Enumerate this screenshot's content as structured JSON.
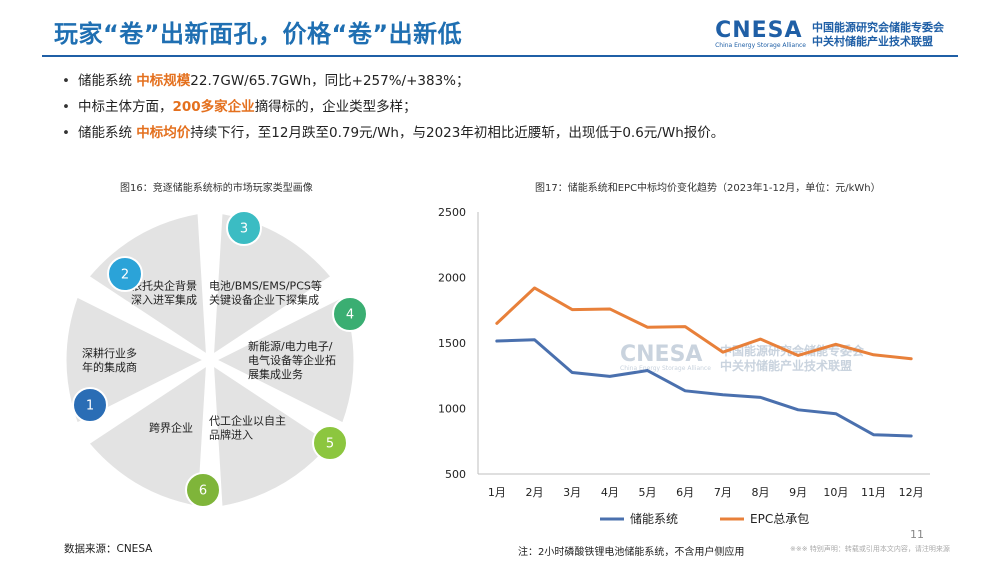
{
  "header": {
    "title": "玩家“卷”出新面孔，价格“卷”出新低",
    "brand_logo": "CNESA",
    "brand_sub": "China Energy Storage Alliance",
    "brand_line1": "中国能源研究会储能专委会",
    "brand_line2": "中关村储能产业技术联盟"
  },
  "bullets": [
    {
      "pre": "储能系统 ",
      "hl": "中标规模",
      "post": "22.7GW/65.7GWh，同比+257%/+383%；"
    },
    {
      "pre": "中标主体方面，",
      "hl": "200多家企业",
      "post": "摘得标的，企业类型多样；"
    },
    {
      "pre": "储能系统 ",
      "hl": "中标均价",
      "post": "持续下行，至12月跌至0.79元/Wh，与2023年初相比近腰斩，出现低于0.6元/Wh报价。"
    }
  ],
  "left_figure": {
    "caption": "图16：竞逐储能系统标的市场玩家类型画像",
    "segments": [
      {
        "num": "1",
        "lines": [
          "深耕行业多",
          "年的集成商"
        ],
        "color": "#2a6db5"
      },
      {
        "num": "2",
        "lines": [
          "依托央企背景",
          "深入进军集成"
        ],
        "color": "#2ba3d8"
      },
      {
        "num": "3",
        "lines": [
          "电池/BMS/EMS/PCS等",
          "关键设备企业下探集成"
        ],
        "color": "#3bbcc3"
      },
      {
        "num": "4",
        "lines": [
          "新能源/电力电子/",
          "电气设备等企业拓",
          "展集成业务"
        ],
        "color": "#3aae72"
      },
      {
        "num": "5",
        "lines": [
          "代工企业以自主",
          "品牌进入"
        ],
        "color": "#8cc63f"
      },
      {
        "num": "6",
        "lines": [
          "跨界企业"
        ],
        "color": "#7fb53a"
      }
    ]
  },
  "chart_data": {
    "type": "line",
    "title": "图17：储能系统和EPC中标均价变化趋势（2023年1-12月，单位：元/kWh）",
    "categories": [
      "1月",
      "2月",
      "3月",
      "4月",
      "5月",
      "6月",
      "7月",
      "8月",
      "9月",
      "10月",
      "11月",
      "12月"
    ],
    "series": [
      {
        "name": "储能系统",
        "color": "#4a70ae",
        "values": [
          1515,
          1525,
          1275,
          1245,
          1290,
          1135,
          1105,
          1085,
          990,
          960,
          800,
          790
        ]
      },
      {
        "name": "EPC总承包",
        "color": "#e8803a",
        "values": [
          1650,
          1920,
          1755,
          1760,
          1620,
          1625,
          1430,
          1530,
          1405,
          1490,
          1410,
          1380
        ]
      }
    ],
    "ylim": [
      500,
      2500
    ],
    "yticks": [
      500,
      1000,
      1500,
      2000,
      2500
    ],
    "grid": false,
    "legend": "bottom",
    "xlabel": "",
    "ylabel": ""
  },
  "footer": {
    "source": "数据来源：CNESA",
    "note": "注：2小时磷酸铁锂电池储能系统，不含用户侧应用",
    "page": "11",
    "disclaimer": "※※※ 特别声明：转载或引用本文内容，请注明来源"
  }
}
